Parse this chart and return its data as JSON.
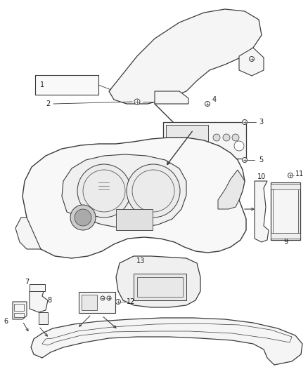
{
  "bg_color": "#ffffff",
  "line_color": "#3a3a3a",
  "label_color": "#1a1a1a",
  "figsize": [
    4.38,
    5.33
  ],
  "dpi": 100,
  "lw": 0.7
}
